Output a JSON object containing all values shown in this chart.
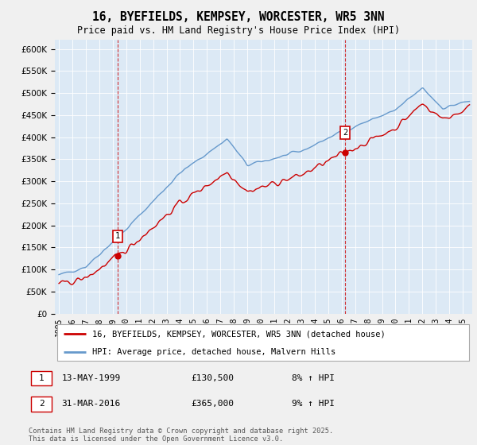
{
  "title": "16, BYEFIELDS, KEMPSEY, WORCESTER, WR5 3NN",
  "subtitle": "Price paid vs. HM Land Registry's House Price Index (HPI)",
  "legend_line1": "16, BYEFIELDS, KEMPSEY, WORCESTER, WR5 3NN (detached house)",
  "legend_line2": "HPI: Average price, detached house, Malvern Hills",
  "transaction1_date": "13-MAY-1999",
  "transaction1_price": "£130,500",
  "transaction1_hpi": "8% ↑ HPI",
  "transaction2_date": "31-MAR-2016",
  "transaction2_price": "£365,000",
  "transaction2_hpi": "9% ↑ HPI",
  "footer": "Contains HM Land Registry data © Crown copyright and database right 2025.\nThis data is licensed under the Open Government Licence v3.0.",
  "red_color": "#cc0000",
  "blue_color": "#6699cc",
  "plot_bg": "#dce9f5",
  "background_color": "#f0f0f0",
  "grid_color": "#ffffff",
  "ylim_min": 0,
  "ylim_max": 620000,
  "yticks": [
    0,
    50000,
    100000,
    150000,
    200000,
    250000,
    300000,
    350000,
    400000,
    450000,
    500000,
    550000,
    600000
  ],
  "marker1_x": 1999.37,
  "marker1_y": 130500,
  "marker2_x": 2016.25,
  "marker2_y": 365000,
  "xmin": 1994.7,
  "xmax": 2025.7
}
